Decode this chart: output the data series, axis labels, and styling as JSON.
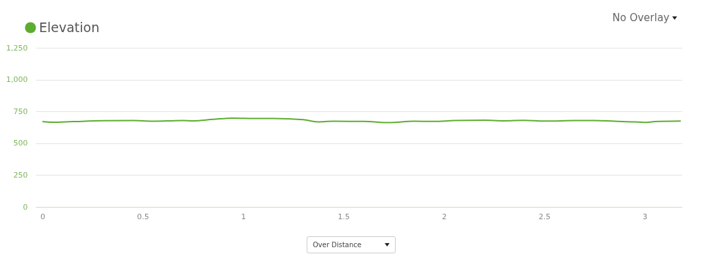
{
  "chart_data": {
    "type": "line",
    "x": [
      0,
      0.05,
      0.15,
      0.3,
      0.45,
      0.55,
      0.7,
      0.75,
      0.85,
      0.95,
      1.05,
      1.15,
      1.3,
      1.37,
      1.45,
      1.6,
      1.73,
      1.85,
      1.95,
      2.05,
      2.2,
      2.3,
      2.4,
      2.5,
      2.65,
      2.75,
      2.85,
      2.95,
      3.0,
      3.05,
      3.18
    ],
    "series": [
      {
        "name": "Elevation",
        "color": "#5cad2f",
        "values": [
          670,
          665,
          670,
          677,
          678,
          673,
          678,
          676,
          688,
          698,
          695,
          695,
          685,
          668,
          673,
          672,
          662,
          673,
          672,
          678,
          681,
          676,
          680,
          674,
          678,
          679,
          673,
          668,
          664,
          670,
          674
        ]
      }
    ],
    "xlim": [
      -0.034,
      3.185
    ],
    "xticks": [
      {
        "value": 0,
        "label": "0"
      },
      0.5,
      {
        "value": 1,
        "label": "1"
      },
      1.5,
      {
        "value": 2,
        "label": "2"
      },
      2.5,
      {
        "value": 3,
        "label": "3"
      }
    ],
    "ylim": [
      0,
      1250
    ],
    "yticks": [
      0,
      250,
      500,
      750,
      {
        "value": 1000,
        "label": "1,000"
      },
      {
        "value": 1250,
        "label": "1,250"
      }
    ],
    "grid": "y",
    "legend": "top left",
    "marker": "none",
    "line_style": "solid",
    "annotations": [
      "No Overlay",
      "Over Distance"
    ]
  }
}
